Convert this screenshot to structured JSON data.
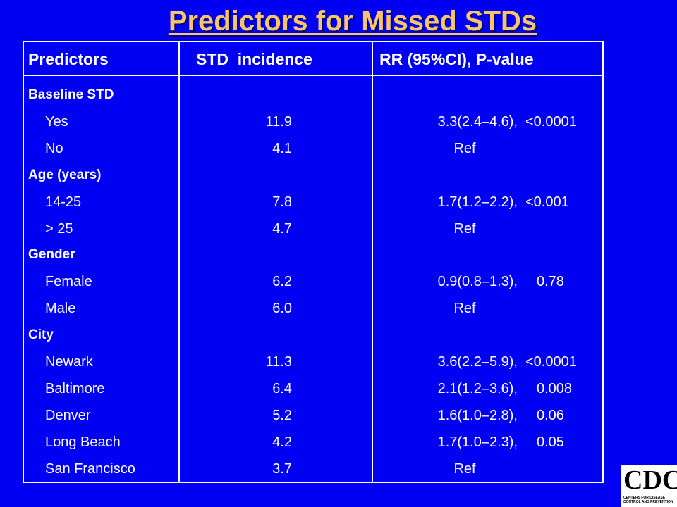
{
  "title": "Predictors for Missed STDs",
  "table": {
    "header": [
      "Predictors",
      "STD  incidence",
      "RR (95%CI), P-value"
    ],
    "rows": [
      {
        "predictor": "Baseline STD"
      },
      {
        "predictor": "Yes",
        "incidence": "11.9",
        "rr": "3.3(2.4–4.6),",
        "p": "<0.0001"
      },
      {
        "predictor": "No",
        "incidence": "4.1",
        "rr": "Ref"
      },
      {
        "predictor": "Age (years)"
      },
      {
        "predictor": "14-25",
        "incidence": "7.8",
        "rr": "1.7(1.2–2.2),",
        "p": "<0.001"
      },
      {
        "predictor": "> 25",
        "incidence": "4.7",
        "rr": "Ref"
      },
      {
        "predictor": "Gender"
      },
      {
        "predictor": "Female",
        "incidence": "6.2",
        "rr": "0.9(0.8–1.3),",
        "p": "0.78"
      },
      {
        "predictor": "Male",
        "incidence": "6.0",
        "rr": "Ref"
      },
      {
        "predictor": "City"
      },
      {
        "predictor": "Newark",
        "incidence": "11.3",
        "rr": "3.6(2.2–5.9),",
        "p": "<0.0001"
      },
      {
        "predictor": "Baltimore",
        "incidence": "6.4",
        "rr": "2.1(1.2–3.6),",
        "p": "0.008"
      },
      {
        "predictor": "Denver",
        "incidence": "5.2",
        "rr": "1.6(1.0–2.8),",
        "p": "0.06"
      },
      {
        "predictor": "Long Beach",
        "incidence": "4.2",
        "rr": "1.7(1.0–2.3),",
        "p": "0.05"
      },
      {
        "predictor": "San Francisco",
        "incidence": "3.7",
        "rr": "Ref"
      }
    ]
  },
  "logo": {
    "title": "CDC",
    "subtitle": "CENTERS FOR DISEASE CONTROL AND PREVENTION"
  }
}
